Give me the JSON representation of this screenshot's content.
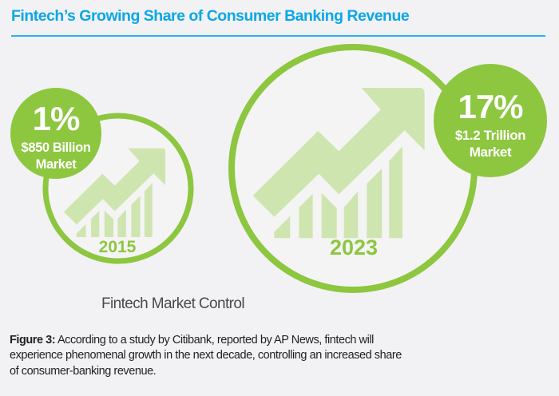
{
  "title": "Fintech’s Growing Share of Consumer Banking Revenue",
  "colors": {
    "title": "#0ba7e6",
    "green": "#8dc63f",
    "light_green": "#cfe5b0"
  },
  "periods": [
    {
      "year": "2015",
      "percent": "1%",
      "amount": "$850 Billion",
      "unit": "Market"
    },
    {
      "year": "2023",
      "percent": "17%",
      "amount": "$1.2 Trillion",
      "unit": "Market"
    }
  ],
  "caption": "Fintech Market Control",
  "figure": {
    "label": "Figure 3:",
    "lines": [
      " According to a study by Citibank, reported by AP News, fintech will",
      "experience phenomenal growth in the next decade, controlling an increased share",
      "of consumer-banking revenue."
    ]
  }
}
